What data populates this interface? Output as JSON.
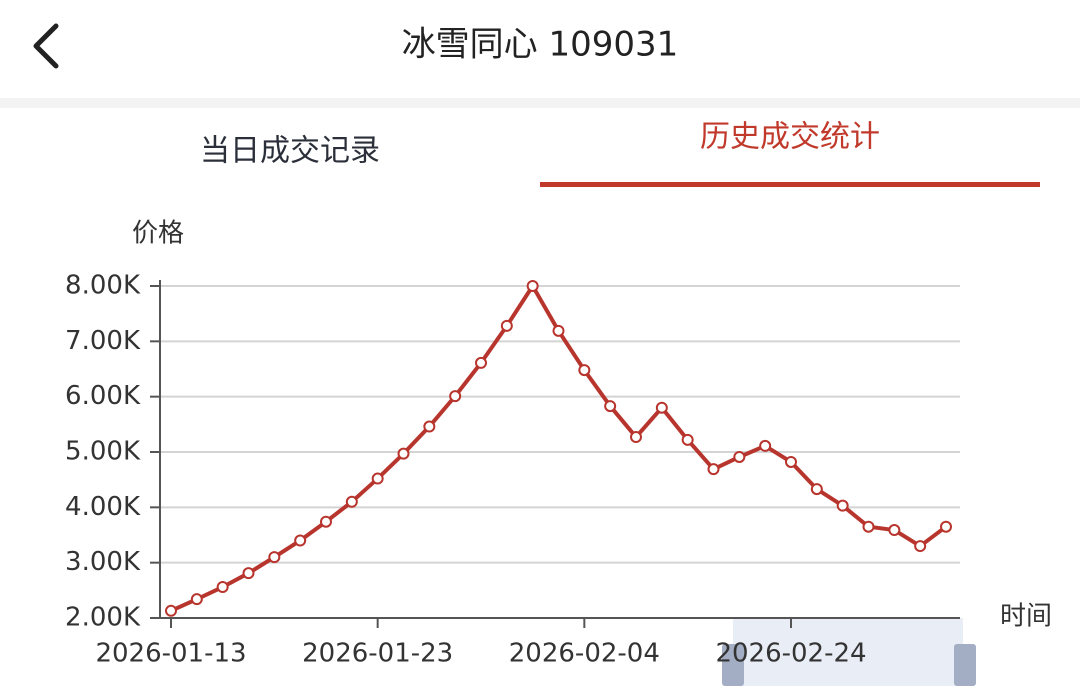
{
  "header": {
    "title": "冰雪同心 109031"
  },
  "tabs": [
    "当日成交记录",
    "历史成交统计"
  ],
  "chart_data": {
    "type": "line",
    "y_label": "价格",
    "x_label": "时间",
    "categories": [
      "2026-01-13",
      null,
      null,
      null,
      null,
      null,
      null,
      null,
      "2026-01-23",
      null,
      null,
      null,
      null,
      null,
      null,
      null,
      "2026-02-04",
      null,
      null,
      null,
      null,
      null,
      null,
      null,
      "2026-02-24",
      null,
      null,
      null,
      null,
      null,
      null
    ],
    "series": [
      {
        "name": "价格",
        "color": "#b8352e",
        "values": [
          2130,
          2340,
          2560,
          2810,
          3100,
          3400,
          3740,
          4100,
          4520,
          4970,
          5460,
          6010,
          6610,
          7280,
          8000,
          7190,
          6480,
          5830,
          5270,
          5800,
          5220,
          4690,
          4910,
          5110,
          4820,
          4330,
          4030,
          3650,
          3590,
          3300,
          3650
        ]
      }
    ],
    "ylim": [
      2000,
      8000
    ],
    "yticks": [
      {
        "value": 2000,
        "label": "2.00K"
      },
      {
        "value": 3000,
        "label": "3.00K"
      },
      {
        "value": 4000,
        "label": "4.00K"
      },
      {
        "value": 5000,
        "label": "5.00K"
      },
      {
        "value": 6000,
        "label": "6.00K"
      },
      {
        "value": 7000,
        "label": "7.00K"
      },
      {
        "value": 8000,
        "label": "8.00K"
      }
    ],
    "grid": true
  }
}
